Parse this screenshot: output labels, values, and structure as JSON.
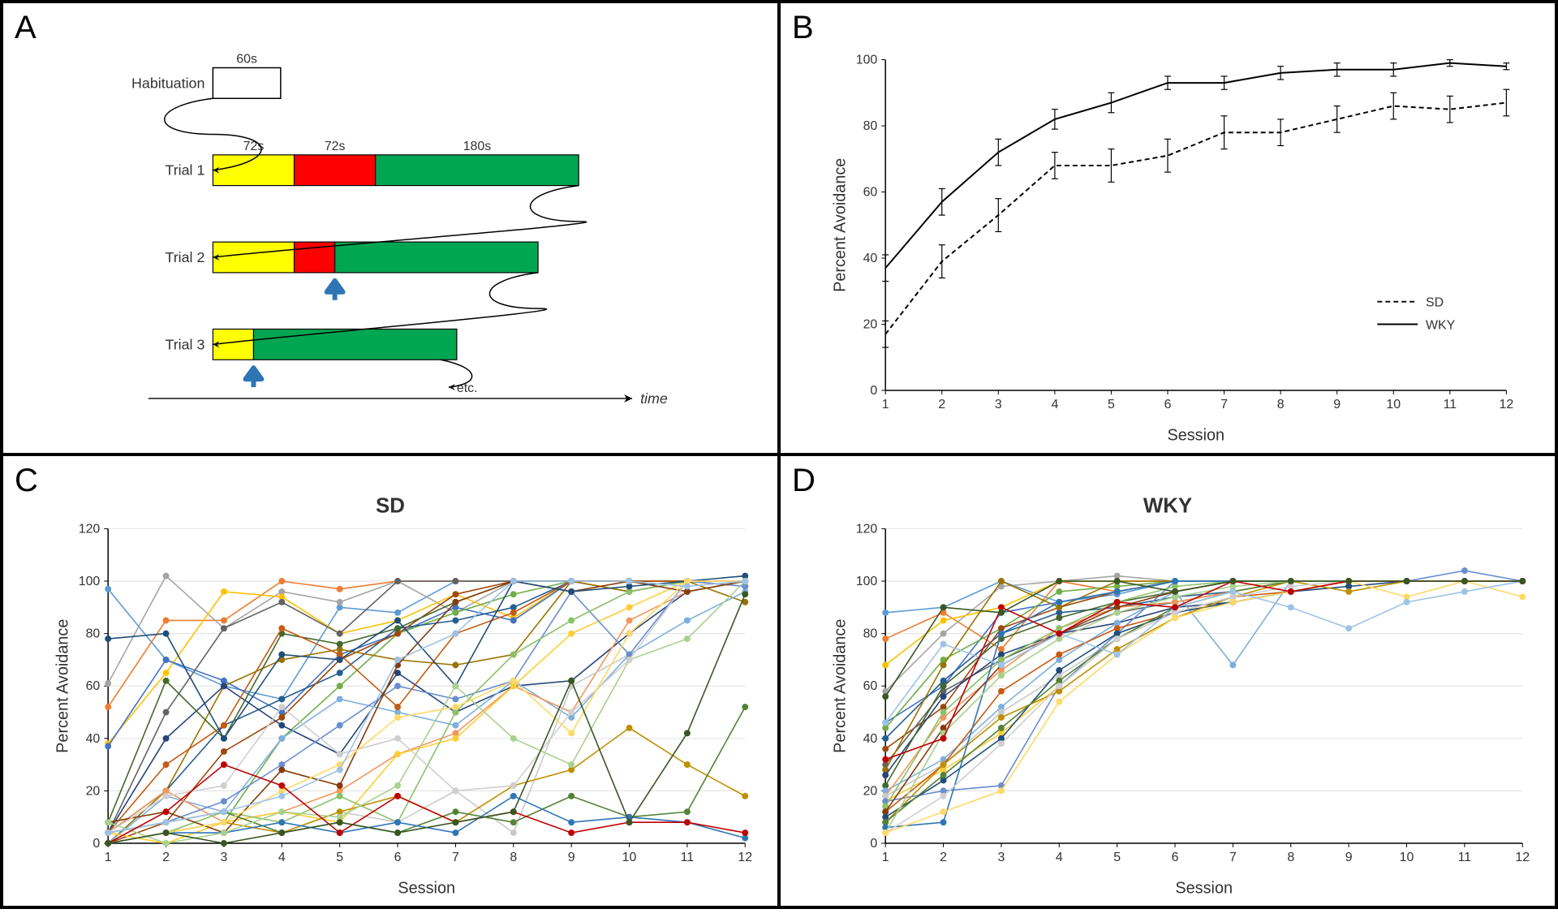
{
  "panels": {
    "A": {
      "label": "A",
      "diagram": {
        "habituation_label": "Habituation",
        "habituation_duration": "60s",
        "trials": [
          {
            "label": "Trial 1",
            "yellow_s": "72s",
            "red_s": "72s",
            "green_s": "180s",
            "yellow_w": 72,
            "red_w": 72,
            "green_w": 180,
            "arrow_at": null
          },
          {
            "label": "Trial 2",
            "yellow_w": 72,
            "red_w": 36,
            "green_w": 180,
            "arrow_at": 108
          },
          {
            "label": "Trial 3",
            "yellow_w": 36,
            "red_w": 0,
            "green_w": 180,
            "arrow_at": 36
          }
        ],
        "time_axis_label": "time",
        "etc_label": "etc.",
        "colors": {
          "yellow": "#ffff00",
          "red": "#ff0000",
          "green": "#00a651",
          "arrow": "#2e75b6",
          "line": "#000000"
        }
      }
    },
    "B": {
      "label": "B",
      "chart": {
        "type": "line",
        "x_label": "Session",
        "y_label": "Percent Avoidance",
        "xlim": [
          1,
          12
        ],
        "ylim": [
          0,
          100
        ],
        "ytick_step": 20,
        "x_ticks": [
          1,
          2,
          3,
          4,
          5,
          6,
          7,
          8,
          9,
          10,
          11,
          12
        ],
        "series": [
          {
            "name": "SD",
            "dash": "6,4",
            "color": "#000000",
            "y": [
              17,
              39,
              53,
              68,
              68,
              71,
              78,
              78,
              82,
              86,
              85,
              87
            ],
            "err": [
              4,
              5,
              5,
              4,
              5,
              5,
              5,
              4,
              4,
              4,
              4,
              4
            ]
          },
          {
            "name": "WKY",
            "dash": "none",
            "color": "#000000",
            "y": [
              37,
              57,
              72,
              82,
              87,
              93,
              93,
              96,
              97,
              97,
              99,
              98
            ],
            "err": [
              4,
              4,
              4,
              3,
              3,
              2,
              2,
              2,
              2,
              2,
              1,
              1
            ]
          }
        ],
        "legend": [
          {
            "label": "SD",
            "dash": "6,4"
          },
          {
            "label": "WKY",
            "dash": "none"
          }
        ],
        "background_color": "#ffffff",
        "grid_color": "#e0e0e0"
      }
    },
    "C": {
      "label": "C",
      "chart": {
        "type": "line-multi",
        "title": "SD",
        "x_label": "Session",
        "y_label": "Percent Avoidance",
        "xlim": [
          1,
          12
        ],
        "ylim": [
          0,
          120
        ],
        "ytick_step": 20,
        "x_ticks": [
          1,
          2,
          3,
          4,
          5,
          6,
          7,
          8,
          9,
          10,
          11,
          12
        ],
        "marker": "circle",
        "marker_size": 4,
        "colors": [
          "#5b9bd5",
          "#ed7d31",
          "#a5a5a5",
          "#ffc000",
          "#4472c4",
          "#70ad47",
          "#255e91",
          "#9e480e",
          "#636363",
          "#997300",
          "#264478",
          "#43682b",
          "#7cafdd",
          "#f1975a",
          "#c9c9c9",
          "#ffcd33",
          "#698ed0",
          "#8cc168",
          "#c55a11",
          "#843c0c",
          "#1f4e79",
          "#bf8f00",
          "#548235",
          "#2e75b6",
          "#a9d18e",
          "#d0cece",
          "#ffd966",
          "#9dc3e6",
          "#c00000",
          "#385723"
        ],
        "series": [
          [
            97,
            70,
            60,
            55,
            90,
            88,
            100,
            100,
            100,
            100,
            100,
            100
          ],
          [
            52,
            85,
            85,
            100,
            97,
            100,
            100,
            100,
            100,
            100,
            100,
            100
          ],
          [
            61,
            102,
            82,
            96,
            92,
            100,
            88,
            100,
            100,
            100,
            100,
            100
          ],
          [
            38,
            65,
            96,
            94,
            80,
            85,
            95,
            86,
            100,
            96,
            100,
            100
          ],
          [
            37,
            70,
            62,
            50,
            72,
            80,
            90,
            85,
            100,
            96,
            100,
            100
          ],
          [
            0,
            4,
            8,
            40,
            60,
            80,
            88,
            95,
            100,
            100,
            100,
            100
          ],
          [
            4,
            20,
            45,
            55,
            65,
            82,
            85,
            90,
            100,
            100,
            100,
            100
          ],
          [
            0,
            8,
            35,
            48,
            70,
            80,
            95,
            100,
            100,
            100,
            100,
            100
          ],
          [
            4,
            50,
            82,
            92,
            80,
            100,
            100,
            100,
            100,
            100,
            100,
            98
          ],
          [
            0,
            20,
            60,
            70,
            74,
            70,
            68,
            72,
            100,
            96,
            100,
            92
          ],
          [
            4,
            40,
            60,
            45,
            34,
            65,
            50,
            60,
            62,
            80,
            96,
            100
          ],
          [
            8,
            62,
            40,
            80,
            76,
            82,
            92,
            100,
            100,
            100,
            100,
            100
          ],
          [
            0,
            18,
            12,
            40,
            55,
            50,
            45,
            62,
            48,
            72,
            85,
            96
          ],
          [
            4,
            20,
            8,
            12,
            20,
            34,
            42,
            60,
            50,
            85,
            96,
            100
          ],
          [
            0,
            4,
            12,
            4,
            12,
            8,
            20,
            4,
            60,
            72,
            100,
            100
          ],
          [
            4,
            0,
            8,
            12,
            8,
            34,
            40,
            60,
            80,
            90,
            100,
            100
          ],
          [
            4,
            8,
            16,
            30,
            45,
            60,
            55,
            62,
            96,
            72,
            100,
            98
          ],
          [
            0,
            4,
            12,
            8,
            18,
            8,
            50,
            72,
            85,
            96,
            100,
            100
          ],
          [
            4,
            30,
            45,
            82,
            72,
            52,
            80,
            88,
            100,
            100,
            100,
            100
          ],
          [
            8,
            12,
            4,
            28,
            22,
            68,
            92,
            100,
            96,
            100,
            96,
            100
          ],
          [
            78,
            80,
            40,
            72,
            70,
            85,
            60,
            100,
            96,
            98,
            100,
            102
          ],
          [
            0,
            4,
            8,
            4,
            12,
            18,
            8,
            22,
            28,
            44,
            30,
            18
          ],
          [
            4,
            8,
            12,
            4,
            8,
            4,
            12,
            8,
            18,
            10,
            12,
            52
          ],
          [
            0,
            4,
            4,
            8,
            4,
            8,
            4,
            18,
            8,
            10,
            8,
            2
          ],
          [
            8,
            0,
            4,
            12,
            10,
            22,
            60,
            40,
            30,
            70,
            78,
            100
          ],
          [
            4,
            18,
            22,
            52,
            34,
            40,
            20,
            22,
            50,
            70,
            100,
            100
          ],
          [
            0,
            4,
            8,
            20,
            30,
            48,
            52,
            62,
            42,
            80,
            100,
            100
          ],
          [
            4,
            8,
            12,
            18,
            28,
            70,
            80,
            100,
            100,
            100,
            98,
            100
          ],
          [
            0,
            12,
            30,
            22,
            4,
            18,
            8,
            12,
            4,
            8,
            8,
            4
          ],
          [
            0,
            4,
            0,
            4,
            8,
            4,
            8,
            12,
            62,
            8,
            42,
            95
          ]
        ]
      }
    },
    "D": {
      "label": "D",
      "chart": {
        "type": "line-multi",
        "title": "WKY",
        "x_label": "Session",
        "y_label": "Percent Avoidance",
        "xlim": [
          1,
          12
        ],
        "ylim": [
          0,
          120
        ],
        "ytick_step": 20,
        "x_ticks": [
          1,
          2,
          3,
          4,
          5,
          6,
          7,
          8,
          9,
          10,
          11,
          12
        ],
        "marker": "circle",
        "marker_size": 4,
        "colors": [
          "#5b9bd5",
          "#ed7d31",
          "#a5a5a5",
          "#ffc000",
          "#4472c4",
          "#70ad47",
          "#255e91",
          "#9e480e",
          "#636363",
          "#997300",
          "#264478",
          "#43682b",
          "#7cafdd",
          "#f1975a",
          "#c9c9c9",
          "#ffcd33",
          "#698ed0",
          "#8cc168",
          "#c55a11",
          "#843c0c",
          "#1f4e79",
          "#bf8f00",
          "#548235",
          "#2e75b6",
          "#a9d18e",
          "#d0cece",
          "#ffd966",
          "#9dc3e6",
          "#c00000",
          "#385723"
        ],
        "series": [
          [
            88,
            90,
            100,
            92,
            95,
            100,
            100,
            100,
            100,
            100,
            100,
            100
          ],
          [
            78,
            88,
            74,
            100,
            96,
            100,
            100,
            100,
            100,
            100,
            100,
            100
          ],
          [
            58,
            80,
            98,
            100,
            102,
            100,
            100,
            100,
            100,
            100,
            100,
            100
          ],
          [
            68,
            85,
            90,
            100,
            100,
            100,
            100,
            100,
            100,
            100,
            100,
            100
          ],
          [
            46,
            60,
            88,
            92,
            96,
            100,
            100,
            100,
            100,
            100,
            100,
            100
          ],
          [
            44,
            70,
            82,
            96,
            98,
            100,
            100,
            100,
            100,
            100,
            100,
            100
          ],
          [
            40,
            62,
            80,
            88,
            90,
            94,
            96,
            100,
            100,
            100,
            100,
            100
          ],
          [
            36,
            52,
            82,
            90,
            96,
            100,
            100,
            100,
            100,
            100,
            100,
            100
          ],
          [
            30,
            58,
            70,
            80,
            88,
            92,
            96,
            100,
            100,
            100,
            100,
            100
          ],
          [
            28,
            68,
            100,
            90,
            100,
            100,
            100,
            100,
            100,
            100,
            100,
            100
          ],
          [
            26,
            56,
            72,
            80,
            84,
            90,
            92,
            96,
            100,
            100,
            100,
            100
          ],
          [
            22,
            60,
            78,
            86,
            92,
            96,
            100,
            100,
            100,
            100,
            100,
            100
          ],
          [
            20,
            32,
            52,
            70,
            84,
            96,
            68,
            100,
            100,
            100,
            100,
            100
          ],
          [
            18,
            48,
            66,
            82,
            90,
            92,
            96,
            100,
            100,
            100,
            100,
            100
          ],
          [
            18,
            30,
            50,
            64,
            78,
            88,
            92,
            96,
            98,
            100,
            100,
            100
          ],
          [
            16,
            28,
            42,
            60,
            78,
            90,
            96,
            100,
            100,
            100,
            100,
            100
          ],
          [
            16,
            20,
            22,
            60,
            80,
            100,
            100,
            100,
            100,
            100,
            104,
            100
          ],
          [
            14,
            50,
            70,
            82,
            92,
            98,
            100,
            100,
            100,
            100,
            100,
            100
          ],
          [
            12,
            30,
            58,
            72,
            82,
            88,
            94,
            96,
            100,
            100,
            100,
            100
          ],
          [
            12,
            44,
            68,
            80,
            90,
            96,
            100,
            100,
            100,
            100,
            100,
            100
          ],
          [
            10,
            24,
            40,
            66,
            80,
            88,
            92,
            96,
            98,
            100,
            100,
            100
          ],
          [
            8,
            30,
            48,
            58,
            74,
            86,
            94,
            100,
            96,
            100,
            100,
            100
          ],
          [
            8,
            26,
            44,
            62,
            78,
            90,
            96,
            100,
            100,
            100,
            100,
            100
          ],
          [
            6,
            8,
            80,
            92,
            96,
            100,
            100,
            100,
            100,
            100,
            100,
            100
          ],
          [
            4,
            42,
            64,
            78,
            88,
            94,
            98,
            100,
            100,
            100,
            100,
            100
          ],
          [
            4,
            18,
            38,
            60,
            78,
            88,
            94,
            98,
            100,
            100,
            100,
            100
          ],
          [
            4,
            12,
            20,
            54,
            72,
            86,
            92,
            96,
            100,
            94,
            100,
            94
          ],
          [
            46,
            76,
            68,
            80,
            72,
            90,
            96,
            90,
            82,
            92,
            96,
            100
          ],
          [
            32,
            40,
            90,
            80,
            92,
            90,
            100,
            96,
            100,
            100,
            100,
            100
          ],
          [
            56,
            90,
            88,
            100,
            100,
            96,
            100,
            100,
            100,
            100,
            100,
            100
          ]
        ]
      }
    }
  }
}
